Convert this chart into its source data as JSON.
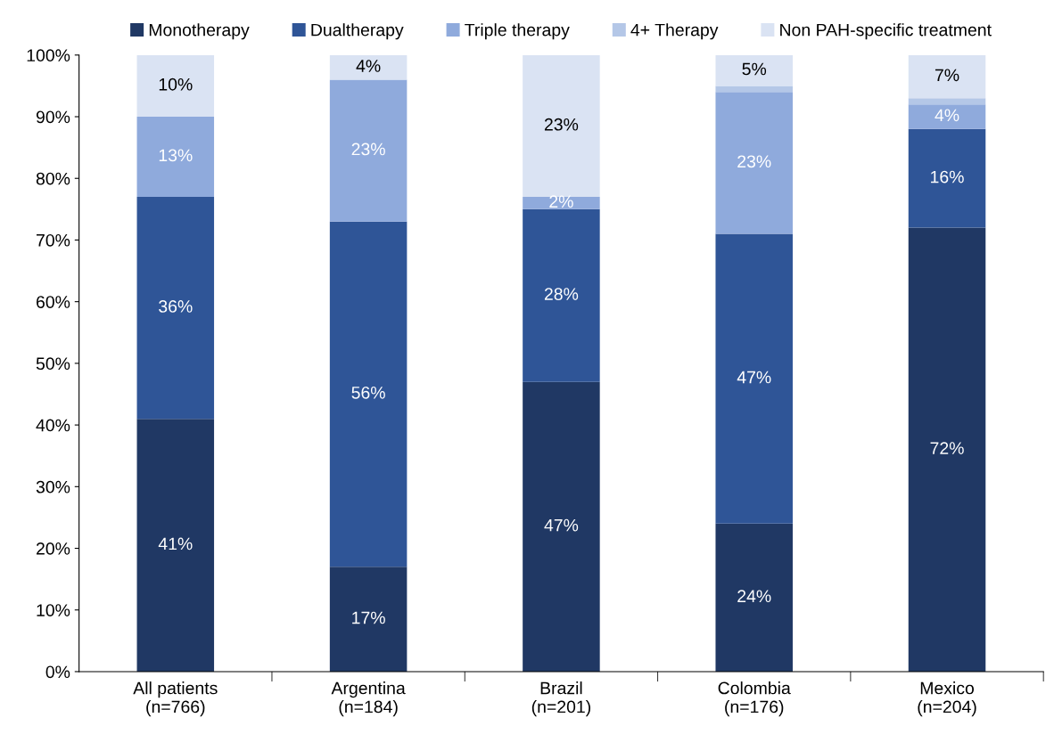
{
  "chart_data": {
    "type": "bar",
    "stacked": true,
    "categories": [
      "All patients\n(n=766)",
      "Argentina\n(n=184)",
      "Brazil\n(n=201)",
      "Colombia\n(n=176)",
      "Mexico\n(n=204)"
    ],
    "series": [
      {
        "name": "Monotherapy",
        "color": "#203864",
        "values": [
          41,
          17,
          47,
          24,
          72
        ],
        "value_labels": [
          "41%",
          "17%",
          "47%",
          "24%",
          "72%"
        ]
      },
      {
        "name": "Dualtherapy",
        "color": "#2f5597",
        "values": [
          36,
          56,
          28,
          47,
          16
        ],
        "value_labels": [
          "36%",
          "56%",
          "28%",
          "47%",
          "16%"
        ]
      },
      {
        "name": "Triple therapy",
        "color": "#8faadc",
        "values": [
          13,
          23,
          2,
          23,
          4
        ],
        "value_labels": [
          "13%",
          "23%",
          "2%",
          "23%",
          "4%"
        ]
      },
      {
        "name": "4+ Therapy",
        "color": "#b4c7e7",
        "values": [
          0,
          0,
          0,
          1,
          1
        ],
        "value_labels": [
          null,
          null,
          null,
          null,
          null
        ]
      },
      {
        "name": "Non PAH-specific treatment",
        "color": "#dae3f3",
        "values": [
          10,
          4,
          23,
          5,
          7
        ],
        "value_labels": [
          "10%",
          "4%",
          "23%",
          "5%",
          "7%"
        ]
      }
    ],
    "ylim": [
      0,
      100
    ],
    "yticks": [
      {
        "value": 0,
        "label": "0%"
      },
      {
        "value": 10,
        "label": "10%"
      },
      {
        "value": 20,
        "label": "20%"
      },
      {
        "value": 30,
        "label": "30%"
      },
      {
        "value": 40,
        "label": "40%"
      },
      {
        "value": 50,
        "label": "50%"
      },
      {
        "value": 60,
        "label": "60%"
      },
      {
        "value": 70,
        "label": "70%"
      },
      {
        "value": 80,
        "label": "80%"
      },
      {
        "value": 90,
        "label": "90%"
      },
      {
        "value": 100,
        "label": "100%"
      }
    ],
    "grid": false,
    "legend": "top"
  }
}
